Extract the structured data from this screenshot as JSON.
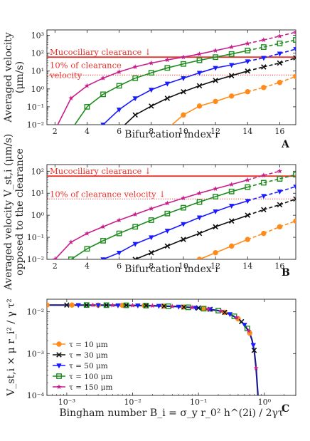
{
  "chart_data": [
    {
      "panel": "A",
      "type": "line",
      "ylabel": [
        "Averaged velocity",
        "(μm/s)"
      ],
      "xlabel": "Bifurcation index i",
      "ylog": true,
      "ylim": [
        0.01,
        2000
      ],
      "xlim": [
        1.5,
        17
      ],
      "xticks": [
        2,
        4,
        6,
        8,
        10,
        12,
        14,
        16
      ],
      "yticks": [
        0.01,
        0.1,
        1,
        10,
        100,
        1000
      ],
      "ytick_labels": [
        "10⁻²",
        "10⁻¹",
        "10⁰",
        "10¹",
        "10²",
        "10³"
      ],
      "hlines": [
        {
          "y": 60,
          "label": "Mucociliary clearance ↓",
          "style": "solid"
        },
        {
          "y": 6,
          "label": "10% of clearance velocity",
          "style": "dotted"
        }
      ],
      "series": [
        {
          "name": "τ = 10 μm",
          "color": "#ff8c1a",
          "marker": "o",
          "x": [
            9,
            10,
            11,
            12,
            13,
            14,
            15,
            16,
            17
          ],
          "y": [
            0.006,
            0.035,
            0.11,
            0.2,
            0.4,
            0.7,
            1.2,
            2.3,
            5
          ]
        },
        {
          "name": "τ = 30 μm",
          "color": "#111111",
          "marker": "x",
          "x": [
            6,
            7,
            8,
            9,
            10,
            11,
            12,
            13,
            14,
            15,
            16,
            17
          ],
          "y": [
            0.005,
            0.035,
            0.11,
            0.3,
            0.7,
            1.5,
            3,
            5.5,
            10,
            17,
            28,
            55
          ]
        },
        {
          "name": "τ = 50 μm",
          "color": "#1a1aff",
          "marker": "v",
          "x": [
            5,
            6,
            7,
            8,
            9,
            10,
            11,
            12,
            13,
            14,
            15,
            16,
            17
          ],
          "y": [
            0.01,
            0.07,
            0.3,
            0.9,
            2,
            4,
            8,
            15,
            22,
            35,
            55,
            95,
            170
          ]
        },
        {
          "name": "τ = 100 μm",
          "color": "#1e8c1e",
          "marker": "s",
          "x": [
            3,
            4,
            5,
            6,
            7,
            8,
            9,
            10,
            11,
            12,
            13,
            14,
            15,
            16,
            17
          ],
          "y": [
            0.005,
            0.1,
            0.5,
            1.5,
            4,
            8,
            15,
            25,
            40,
            60,
            90,
            140,
            220,
            350,
            550
          ]
        },
        {
          "name": "τ = 150 μm",
          "color": "#c81e8c",
          "marker": "*",
          "x": [
            2,
            3,
            4,
            5,
            6,
            7,
            8,
            9,
            10,
            11,
            12,
            13,
            14,
            15,
            16,
            17
          ],
          "y": [
            0.005,
            0.3,
            1.5,
            4,
            9,
            17,
            28,
            42,
            60,
            90,
            140,
            220,
            350,
            550,
            900,
            1500
          ]
        }
      ]
    },
    {
      "panel": "B",
      "type": "line",
      "ylabel": [
        "Averaged velocity V_st,i (μm/s)",
        "opposed to the clearance"
      ],
      "xlabel": "Bifurcation index i",
      "ylog": true,
      "ylim": [
        0.01,
        200
      ],
      "xlim": [
        1.5,
        17
      ],
      "xticks": [
        2,
        4,
        6,
        8,
        10,
        12,
        14,
        16
      ],
      "yticks": [
        0.01,
        0.1,
        1,
        10,
        100
      ],
      "ytick_labels": [
        "10⁻²",
        "10⁻¹",
        "10⁰",
        "10¹",
        "10²"
      ],
      "hlines": [
        {
          "y": 60,
          "label": "Mucociliary clearance ↓",
          "style": "solid"
        },
        {
          "y": 5.5,
          "label": "10% of clearance velocity ↓",
          "style": "dotted"
        }
      ],
      "series": [
        {
          "name": "τ = 10 μm",
          "color": "#ff8c1a",
          "marker": "o",
          "x": [
            11,
            12,
            13,
            14,
            15,
            16,
            17
          ],
          "y": [
            0.01,
            0.02,
            0.04,
            0.08,
            0.15,
            0.3,
            0.55
          ]
        },
        {
          "name": "τ = 30 μm",
          "color": "#111111",
          "marker": "x",
          "x": [
            7,
            8,
            9,
            10,
            11,
            12,
            13,
            14,
            15,
            16,
            17
          ],
          "y": [
            0.01,
            0.02,
            0.04,
            0.08,
            0.15,
            0.3,
            0.55,
            1,
            1.8,
            3,
            5.5
          ]
        },
        {
          "name": "τ = 50 μm",
          "color": "#1a1aff",
          "marker": "v",
          "x": [
            5,
            6,
            7,
            8,
            9,
            10,
            11,
            12,
            13,
            14,
            15,
            16,
            17
          ],
          "y": [
            0.01,
            0.02,
            0.05,
            0.1,
            0.2,
            0.4,
            0.8,
            1.5,
            2.7,
            4.5,
            7.5,
            12,
            20
          ]
        },
        {
          "name": "τ = 100 μm",
          "color": "#1e8c1e",
          "marker": "s",
          "x": [
            3,
            4,
            5,
            6,
            7,
            8,
            9,
            10,
            11,
            12,
            13,
            14,
            15,
            16,
            17
          ],
          "y": [
            0.01,
            0.03,
            0.07,
            0.15,
            0.3,
            0.6,
            1.2,
            2.2,
            4,
            7,
            12,
            19,
            30,
            45,
            70
          ]
        },
        {
          "name": "τ = 150 μm",
          "color": "#c81e8c",
          "marker": "*",
          "x": [
            2,
            3,
            4,
            5,
            6,
            7,
            8,
            9,
            10,
            11,
            12,
            13,
            14,
            15,
            16
          ],
          "y": [
            0.01,
            0.06,
            0.15,
            0.3,
            0.6,
            1.1,
            2,
            3.5,
            6,
            10,
            16,
            25,
            40,
            65,
            100
          ]
        }
      ]
    },
    {
      "panel": "C",
      "type": "scatter",
      "ylabel": "V_st,i × μ r_i² / γ τ²",
      "xlabel": "Bingham number B_i = σ_y r_0² h^(2i) / 2γτ",
      "xlog": true,
      "ylog": true,
      "xlim": [
        0.0005,
        3
      ],
      "ylim": [
        0.0001,
        0.02
      ],
      "xticks": [
        0.001,
        0.01,
        0.1,
        1
      ],
      "xtick_labels": [
        "10⁻³",
        "10⁻²",
        "10⁻¹",
        "10⁰"
      ],
      "yticks": [
        0.0001,
        0.001,
        0.01
      ],
      "ytick_labels": [
        "10⁻⁴",
        "10⁻³",
        "10⁻²"
      ],
      "legend": "left",
      "curve": {
        "x": [
          0.0005,
          0.005,
          0.02,
          0.05,
          0.1,
          0.2,
          0.3,
          0.4,
          0.5,
          0.6,
          0.65,
          0.7,
          0.75,
          0.8
        ],
        "y": [
          0.0145,
          0.0144,
          0.014,
          0.0133,
          0.0124,
          0.0107,
          0.0088,
          0.0068,
          0.0049,
          0.0031,
          0.0021,
          0.0012,
          0.00045,
          0.0001
        ]
      },
      "series": [
        {
          "name": "τ = 10 μm",
          "color": "#ff8c1a",
          "marker": "o",
          "x": [
            0.0005,
            0.0012,
            0.003,
            0.007,
            0.015,
            0.03,
            0.06,
            0.12,
            0.25,
            0.4,
            0.6
          ],
          "y": [
            0.0145,
            0.0145,
            0.0144,
            0.0143,
            0.0141,
            0.0137,
            0.013,
            0.0119,
            0.0097,
            0.0068,
            0.0031
          ]
        },
        {
          "name": "τ = 30 μm",
          "color": "#111111",
          "marker": "x",
          "x": [
            0.001,
            0.002,
            0.004,
            0.008,
            0.016,
            0.03,
            0.06,
            0.1,
            0.15,
            0.25,
            0.45,
            0.7
          ],
          "y": [
            0.0145,
            0.0144,
            0.0144,
            0.0143,
            0.0141,
            0.0137,
            0.013,
            0.0124,
            0.0115,
            0.0097,
            0.0058,
            0.0012
          ]
        },
        {
          "name": "τ = 50 μm",
          "color": "#1a1aff",
          "marker": "v",
          "x": [
            0.0015,
            0.003,
            0.006,
            0.012,
            0.025,
            0.05,
            0.09,
            0.15,
            0.3,
            0.5,
            0.68
          ],
          "y": [
            0.0145,
            0.0144,
            0.0143,
            0.0142,
            0.0139,
            0.0133,
            0.0125,
            0.0115,
            0.0088,
            0.0049,
            0.0016
          ]
        },
        {
          "name": "τ = 100 μm",
          "color": "#1e8c1e",
          "marker": "s",
          "x": [
            0.002,
            0.004,
            0.008,
            0.016,
            0.035,
            0.07,
            0.12,
            0.2,
            0.35,
            0.55
          ],
          "y": [
            0.0145,
            0.0144,
            0.0143,
            0.0141,
            0.0136,
            0.0128,
            0.0119,
            0.0107,
            0.0078,
            0.004
          ]
        },
        {
          "name": "τ = 150 μm",
          "color": "#c81e8c",
          "marker": "*",
          "x": [
            0.0025,
            0.005,
            0.01,
            0.02,
            0.04,
            0.08,
            0.14,
            0.22,
            0.38,
            0.58,
            0.75
          ],
          "y": [
            0.0145,
            0.0144,
            0.0142,
            0.014,
            0.0135,
            0.0127,
            0.0117,
            0.0104,
            0.0073,
            0.0035,
            0.00045
          ]
        }
      ]
    }
  ]
}
